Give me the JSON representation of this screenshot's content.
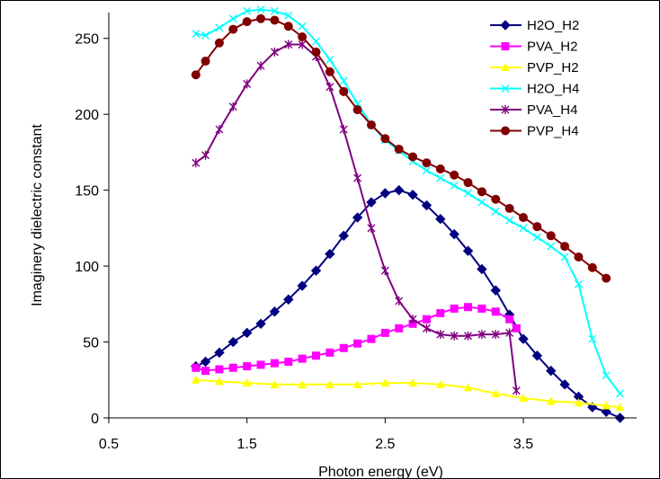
{
  "chart_data": {
    "type": "line",
    "xlabel": "Photon energy (eV)",
    "ylabel": "Imaginery dielectric constant",
    "xlim": [
      0.5,
      4.32
    ],
    "ylim": [
      0,
      267
    ],
    "xticks": [
      "0.5",
      "1.5",
      "2.5",
      "3.5"
    ],
    "yticks": [
      "0",
      "50",
      "100",
      "150",
      "200",
      "250"
    ],
    "legend_position": "top-right",
    "series": [
      {
        "name": "H2O_H2",
        "color": "#000080",
        "marker": "diamond",
        "x": [
          1.13,
          1.2,
          1.3,
          1.4,
          1.5,
          1.6,
          1.7,
          1.8,
          1.9,
          2.0,
          2.1,
          2.2,
          2.3,
          2.4,
          2.5,
          2.6,
          2.7,
          2.8,
          2.9,
          3.0,
          3.1,
          3.2,
          3.3,
          3.4,
          3.5,
          3.6,
          3.7,
          3.8,
          3.9,
          4.0,
          4.1,
          4.2
        ],
        "y": [
          34,
          37,
          43,
          50,
          56,
          62,
          70,
          78,
          87,
          97,
          108,
          120,
          132,
          142,
          148,
          150,
          147,
          140,
          131,
          121,
          110,
          98,
          84,
          68,
          52,
          41,
          31,
          22,
          14,
          7,
          4,
          0
        ]
      },
      {
        "name": "PVA_H2",
        "color": "#FF00FF",
        "marker": "square",
        "x": [
          1.13,
          1.2,
          1.3,
          1.4,
          1.5,
          1.6,
          1.7,
          1.8,
          1.9,
          2.0,
          2.1,
          2.2,
          2.3,
          2.4,
          2.5,
          2.6,
          2.7,
          2.8,
          2.9,
          3.0,
          3.1,
          3.2,
          3.3,
          3.4,
          3.45
        ],
        "y": [
          33,
          31,
          32,
          33,
          34,
          35,
          36,
          37,
          39,
          41,
          43,
          46,
          49,
          52,
          56,
          59,
          62,
          65,
          69,
          72,
          73,
          72,
          70,
          65,
          59
        ]
      },
      {
        "name": "PVP_H2",
        "color": "#FFFF00",
        "marker": "triangle",
        "x": [
          1.13,
          1.3,
          1.5,
          1.7,
          1.9,
          2.1,
          2.3,
          2.5,
          2.7,
          2.9,
          3.1,
          3.3,
          3.5,
          3.7,
          3.9,
          4.1,
          4.2
        ],
        "y": [
          25,
          24,
          23,
          22,
          22,
          22,
          22,
          23,
          23,
          22,
          20,
          16,
          13,
          11,
          10,
          8,
          7
        ]
      },
      {
        "name": "H2O_H4",
        "color": "#00FFFF",
        "marker": "x",
        "x": [
          1.13,
          1.2,
          1.3,
          1.4,
          1.5,
          1.6,
          1.7,
          1.8,
          1.9,
          2.0,
          2.1,
          2.2,
          2.3,
          2.4,
          2.5,
          2.6,
          2.7,
          2.8,
          2.9,
          3.0,
          3.1,
          3.2,
          3.3,
          3.4,
          3.5,
          3.6,
          3.7,
          3.8,
          3.9,
          4.0,
          4.1,
          4.2
        ],
        "y": [
          253,
          252,
          257,
          263,
          268,
          269,
          268,
          265,
          258,
          248,
          236,
          222,
          207,
          193,
          183,
          176,
          169,
          163,
          158,
          153,
          148,
          142,
          136,
          130,
          125,
          119,
          113,
          106,
          88,
          52,
          28,
          16
        ]
      },
      {
        "name": "PVA_H4",
        "color": "#800080",
        "marker": "star",
        "x": [
          1.13,
          1.2,
          1.3,
          1.4,
          1.5,
          1.6,
          1.7,
          1.8,
          1.9,
          2.0,
          2.1,
          2.2,
          2.3,
          2.4,
          2.5,
          2.6,
          2.7,
          2.8,
          2.9,
          3.0,
          3.1,
          3.2,
          3.3,
          3.4,
          3.45
        ],
        "y": [
          168,
          173,
          190,
          205,
          220,
          232,
          241,
          246,
          246,
          238,
          218,
          190,
          158,
          125,
          97,
          77,
          65,
          59,
          55,
          54,
          54,
          55,
          55,
          56,
          18
        ]
      },
      {
        "name": "PVP_H4",
        "color": "#800000",
        "marker": "circle",
        "x": [
          1.13,
          1.2,
          1.3,
          1.4,
          1.5,
          1.6,
          1.7,
          1.8,
          1.9,
          2.0,
          2.1,
          2.2,
          2.3,
          2.4,
          2.5,
          2.6,
          2.7,
          2.8,
          2.9,
          3.0,
          3.1,
          3.2,
          3.3,
          3.4,
          3.5,
          3.6,
          3.7,
          3.8,
          3.9,
          4.0,
          4.1
        ],
        "y": [
          226,
          235,
          247,
          256,
          261,
          263,
          262,
          258,
          251,
          241,
          228,
          215,
          203,
          193,
          184,
          177,
          172,
          168,
          164,
          160,
          155,
          149,
          144,
          138,
          132,
          126,
          120,
          113,
          106,
          99,
          92
        ]
      }
    ]
  }
}
